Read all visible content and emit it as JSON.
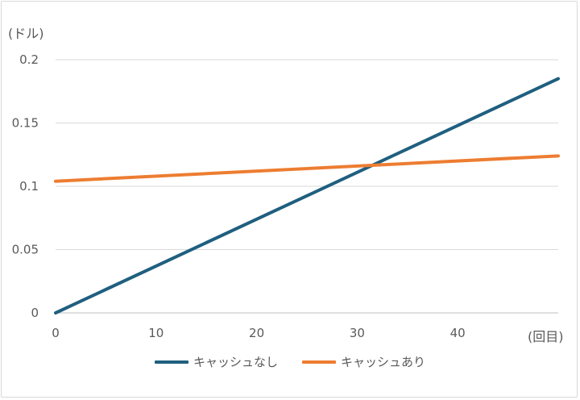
{
  "chart_data": {
    "type": "line",
    "ylabel": "(ドル)",
    "xlabel": "(回目)",
    "xlim": [
      0,
      50
    ],
    "ylim": [
      0,
      0.2
    ],
    "xticks": [
      0,
      10,
      20,
      30,
      40
    ],
    "xtick_labels": [
      "0",
      "10",
      "20",
      "30",
      "40"
    ],
    "yticks": [
      0,
      0.05,
      0.1,
      0.15,
      0.2
    ],
    "ytick_labels": [
      "0",
      "0.05",
      "0.1",
      "0.15",
      "0.2"
    ],
    "grid": "horizontal",
    "legend_position": "bottom",
    "series": [
      {
        "name": "キャッシュなし",
        "color": "#1f5f7f",
        "x": [
          0,
          50
        ],
        "y": [
          0,
          0.185
        ]
      },
      {
        "name": "キャッシュあり",
        "color": "#ed7d31",
        "x": [
          0,
          50
        ],
        "y": [
          0.104,
          0.124
        ]
      }
    ]
  }
}
